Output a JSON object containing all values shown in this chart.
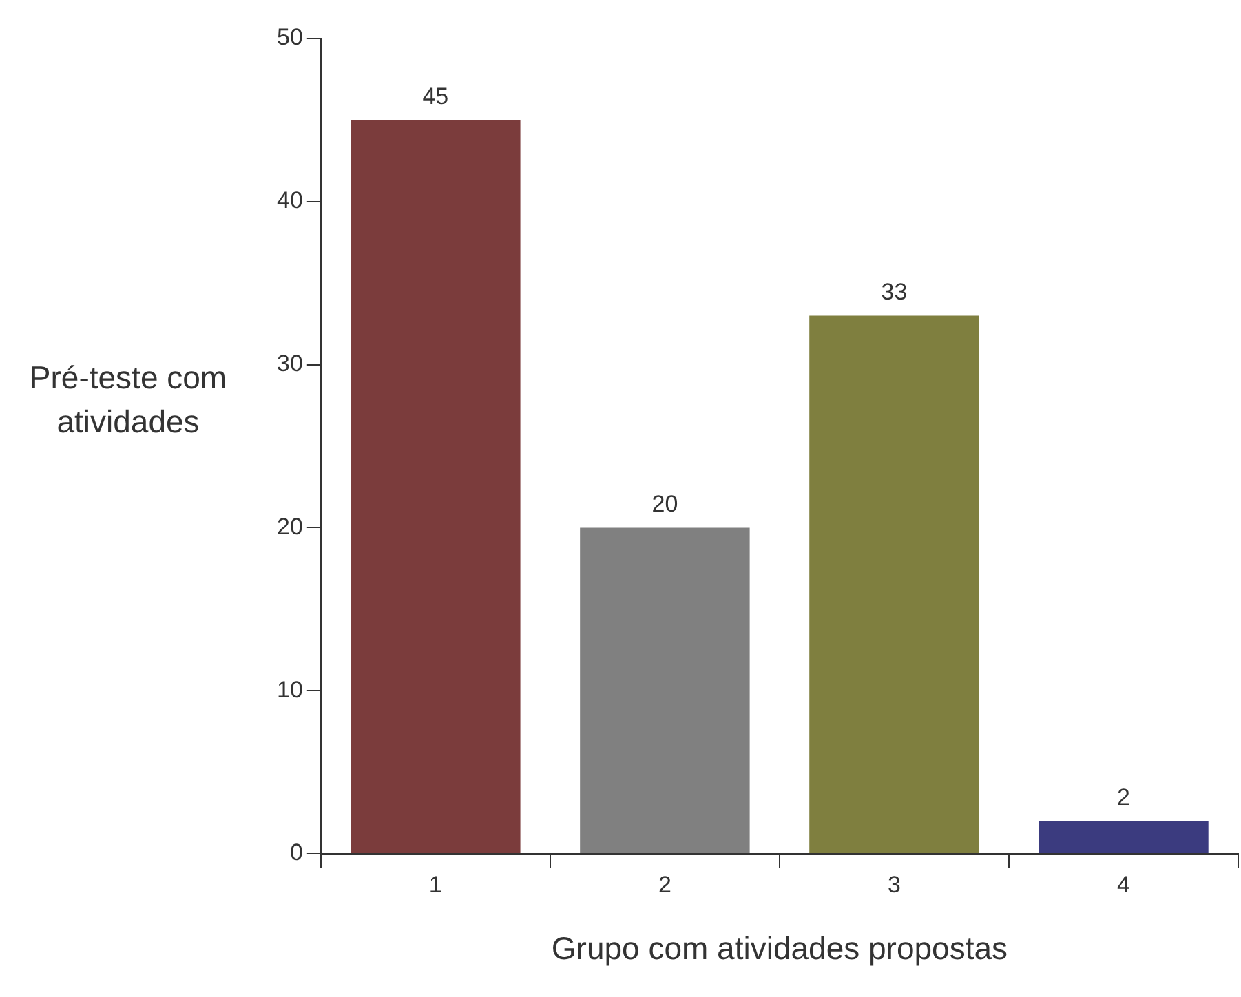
{
  "chart_data": {
    "type": "bar",
    "xlabel": "Grupo com atividades propostas",
    "ylabel": "Pré-teste com atividades",
    "categories": [
      "1",
      "2",
      "3",
      "4"
    ],
    "values": [
      45,
      20,
      33,
      2
    ],
    "colors": [
      "#7b3c3c",
      "#808080",
      "#7f7f3f",
      "#3b3b7f"
    ],
    "ylim": [
      0,
      50
    ],
    "yticks": [
      0,
      10,
      20,
      30,
      40,
      50
    ],
    "grid": false,
    "legend": false,
    "data_labels": true
  }
}
